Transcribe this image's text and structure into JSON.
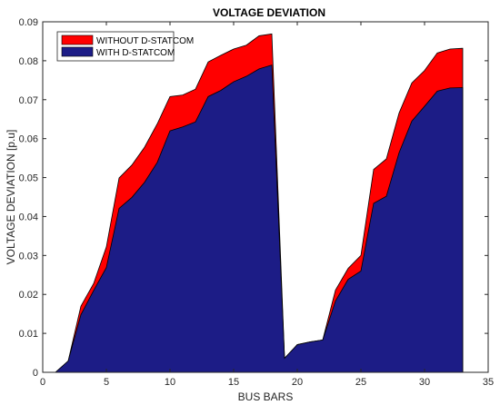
{
  "chart_data": {
    "type": "area",
    "title": "VOLTAGE DEVIATION",
    "xlabel": "BUS BARS",
    "ylabel": "VOLTAGE DEVIATION [p.u]",
    "xlim": [
      0,
      35
    ],
    "ylim": [
      0,
      0.09
    ],
    "xticks": [
      0,
      5,
      10,
      15,
      20,
      25,
      30,
      35
    ],
    "yticks": [
      0,
      0.01,
      0.02,
      0.03,
      0.04,
      0.05,
      0.06,
      0.07,
      0.08,
      0.09
    ],
    "x": [
      1,
      2,
      3,
      4,
      5,
      6,
      7,
      8,
      9,
      10,
      11,
      12,
      13,
      14,
      15,
      16,
      17,
      18,
      19,
      20,
      21,
      22,
      23,
      24,
      25,
      26,
      27,
      28,
      29,
      30,
      31,
      32,
      33
    ],
    "series": [
      {
        "name": "WITHOUT D-STATCOM",
        "color": "#ff0000",
        "values": [
          0,
          0.0029,
          0.017,
          0.0228,
          0.0322,
          0.0499,
          0.0532,
          0.0578,
          0.0638,
          0.0708,
          0.0712,
          0.0727,
          0.0797,
          0.0814,
          0.083,
          0.084,
          0.0864,
          0.0869,
          0.0036,
          0.0071,
          0.0078,
          0.0083,
          0.0211,
          0.0267,
          0.03,
          0.0521,
          0.0548,
          0.0666,
          0.0743,
          0.0775,
          0.082,
          0.083,
          0.0832
        ]
      },
      {
        "name": "WITH D-STATCOM",
        "color": "#1c1c86",
        "values": [
          0,
          0.0029,
          0.0148,
          0.021,
          0.0269,
          0.0421,
          0.0449,
          0.0488,
          0.0539,
          0.062,
          0.063,
          0.0643,
          0.0708,
          0.0724,
          0.0746,
          0.076,
          0.0779,
          0.0789,
          0.0036,
          0.0071,
          0.0078,
          0.0083,
          0.0183,
          0.0239,
          0.026,
          0.0434,
          0.0452,
          0.0564,
          0.0645,
          0.0683,
          0.0722,
          0.073,
          0.0731
        ]
      }
    ],
    "legend_position": "top-left",
    "grid": false
  }
}
